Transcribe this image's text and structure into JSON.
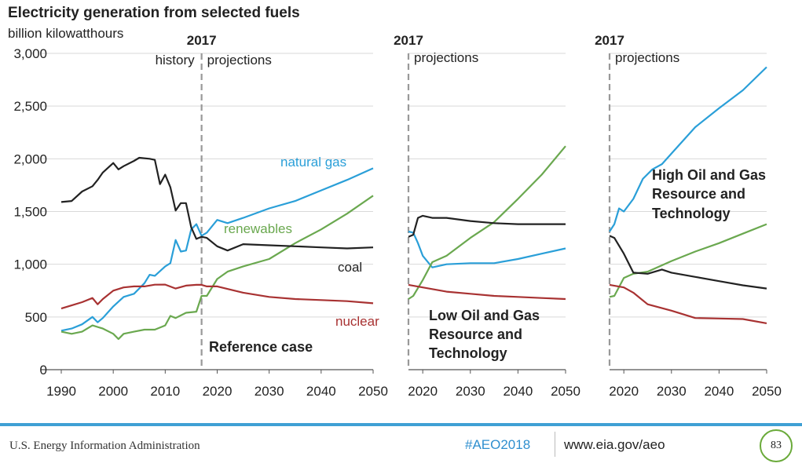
{
  "title": "Electricity generation from selected fuels",
  "unit": "billion kilowatthours",
  "colors": {
    "natural_gas": "#2a9fd8",
    "renewables": "#6aa84f",
    "coal": "#222222",
    "nuclear": "#a83232",
    "footer_rule": "#3fa0d4"
  },
  "chart_data": [
    {
      "type": "line",
      "xlim": [
        1990,
        2050
      ],
      "ylim": [
        0,
        3000
      ],
      "x_ticks": [
        "1990",
        "2000",
        "2010",
        "2020",
        "2030",
        "2040",
        "2050"
      ],
      "y_ticks": [
        "0",
        "500",
        "1,000",
        "1,500",
        "2,000",
        "2,500",
        "3,000"
      ],
      "marker_year": "2017",
      "marker_left_label": "history",
      "marker_right_label": "projections",
      "case_label": "Reference case",
      "series": [
        {
          "name": "natural gas",
          "color": "#2a9fd8",
          "points": [
            [
              1990,
              370
            ],
            [
              1992,
              390
            ],
            [
              1994,
              430
            ],
            [
              1996,
              500
            ],
            [
              1997,
              450
            ],
            [
              1998,
              490
            ],
            [
              2000,
              600
            ],
            [
              2002,
              690
            ],
            [
              2004,
              720
            ],
            [
              2006,
              820
            ],
            [
              2007,
              900
            ],
            [
              2008,
              890
            ],
            [
              2010,
              980
            ],
            [
              2011,
              1010
            ],
            [
              2012,
              1230
            ],
            [
              2013,
              1120
            ],
            [
              2014,
              1130
            ],
            [
              2015,
              1330
            ],
            [
              2016,
              1380
            ],
            [
              2017,
              1270
            ],
            [
              2018,
              1300
            ],
            [
              2020,
              1420
            ],
            [
              2022,
              1390
            ],
            [
              2025,
              1440
            ],
            [
              2030,
              1530
            ],
            [
              2035,
              1600
            ],
            [
              2040,
              1700
            ],
            [
              2045,
              1800
            ],
            [
              2050,
              1910
            ]
          ]
        },
        {
          "name": "renewables",
          "color": "#6aa84f",
          "points": [
            [
              1990,
              360
            ],
            [
              1992,
              340
            ],
            [
              1994,
              360
            ],
            [
              1996,
              420
            ],
            [
              1998,
              390
            ],
            [
              2000,
              340
            ],
            [
              2001,
              290
            ],
            [
              2002,
              340
            ],
            [
              2004,
              360
            ],
            [
              2006,
              380
            ],
            [
              2008,
              380
            ],
            [
              2010,
              420
            ],
            [
              2011,
              510
            ],
            [
              2012,
              490
            ],
            [
              2014,
              540
            ],
            [
              2016,
              550
            ],
            [
              2017,
              700
            ],
            [
              2018,
              700
            ],
            [
              2020,
              860
            ],
            [
              2022,
              930
            ],
            [
              2025,
              980
            ],
            [
              2030,
              1050
            ],
            [
              2035,
              1200
            ],
            [
              2040,
              1330
            ],
            [
              2045,
              1480
            ],
            [
              2050,
              1650
            ]
          ]
        },
        {
          "name": "coal",
          "color": "#222222",
          "points": [
            [
              1990,
              1590
            ],
            [
              1992,
              1600
            ],
            [
              1994,
              1690
            ],
            [
              1996,
              1740
            ],
            [
              1997,
              1800
            ],
            [
              1998,
              1870
            ],
            [
              2000,
              1960
            ],
            [
              2001,
              1900
            ],
            [
              2002,
              1930
            ],
            [
              2004,
              1980
            ],
            [
              2005,
              2010
            ],
            [
              2007,
              2000
            ],
            [
              2008,
              1990
            ],
            [
              2009,
              1760
            ],
            [
              2010,
              1850
            ],
            [
              2011,
              1730
            ],
            [
              2012,
              1510
            ],
            [
              2013,
              1580
            ],
            [
              2014,
              1580
            ],
            [
              2015,
              1350
            ],
            [
              2016,
              1240
            ],
            [
              2017,
              1260
            ],
            [
              2018,
              1250
            ],
            [
              2020,
              1170
            ],
            [
              2022,
              1130
            ],
            [
              2025,
              1190
            ],
            [
              2030,
              1180
            ],
            [
              2035,
              1170
            ],
            [
              2040,
              1160
            ],
            [
              2045,
              1150
            ],
            [
              2050,
              1160
            ]
          ]
        },
        {
          "name": "nuclear",
          "color": "#a83232",
          "points": [
            [
              1990,
              580
            ],
            [
              1992,
              610
            ],
            [
              1994,
              640
            ],
            [
              1996,
              680
            ],
            [
              1997,
              620
            ],
            [
              1998,
              670
            ],
            [
              2000,
              750
            ],
            [
              2002,
              780
            ],
            [
              2004,
              790
            ],
            [
              2006,
              790
            ],
            [
              2008,
              806
            ],
            [
              2010,
              807
            ],
            [
              2012,
              770
            ],
            [
              2014,
              797
            ],
            [
              2016,
              805
            ],
            [
              2017,
              805
            ],
            [
              2018,
              790
            ],
            [
              2020,
              790
            ],
            [
              2025,
              730
            ],
            [
              2030,
              690
            ],
            [
              2035,
              670
            ],
            [
              2040,
              660
            ],
            [
              2045,
              650
            ],
            [
              2050,
              630
            ]
          ]
        }
      ]
    },
    {
      "type": "line",
      "xlim": [
        2017,
        2050
      ],
      "ylim": [
        0,
        3000
      ],
      "x_ticks": [
        "2020",
        "2030",
        "2040",
        "2050"
      ],
      "marker_year": "2017",
      "marker_right_label": "projections",
      "case_label": "Low Oil and Gas Resource and Technology",
      "series": [
        {
          "color": "#2a9fd8",
          "points": [
            [
              2017,
              1310
            ],
            [
              2018,
              1300
            ],
            [
              2019,
              1200
            ],
            [
              2020,
              1080
            ],
            [
              2022,
              970
            ],
            [
              2025,
              1000
            ],
            [
              2030,
              1010
            ],
            [
              2035,
              1010
            ],
            [
              2040,
              1050
            ],
            [
              2045,
              1100
            ],
            [
              2050,
              1150
            ]
          ]
        },
        {
          "color": "#6aa84f",
          "points": [
            [
              2017,
              670
            ],
            [
              2018,
              700
            ],
            [
              2020,
              850
            ],
            [
              2022,
              1020
            ],
            [
              2025,
              1080
            ],
            [
              2030,
              1250
            ],
            [
              2035,
              1400
            ],
            [
              2040,
              1620
            ],
            [
              2045,
              1850
            ],
            [
              2050,
              2120
            ]
          ]
        },
        {
          "color": "#222222",
          "points": [
            [
              2017,
              1260
            ],
            [
              2018,
              1280
            ],
            [
              2019,
              1440
            ],
            [
              2020,
              1460
            ],
            [
              2022,
              1440
            ],
            [
              2025,
              1440
            ],
            [
              2030,
              1410
            ],
            [
              2035,
              1390
            ],
            [
              2040,
              1380
            ],
            [
              2045,
              1380
            ],
            [
              2050,
              1380
            ]
          ]
        },
        {
          "color": "#a83232",
          "points": [
            [
              2017,
              805
            ],
            [
              2020,
              780
            ],
            [
              2025,
              740
            ],
            [
              2030,
              720
            ],
            [
              2035,
              700
            ],
            [
              2040,
              690
            ],
            [
              2045,
              680
            ],
            [
              2050,
              670
            ]
          ]
        }
      ]
    },
    {
      "type": "line",
      "xlim": [
        2017,
        2050
      ],
      "ylim": [
        0,
        3000
      ],
      "x_ticks": [
        "2020",
        "2030",
        "2040",
        "2050"
      ],
      "marker_year": "2017",
      "marker_right_label": "projections",
      "case_label": "High Oil and Gas Resource and Technology",
      "series": [
        {
          "color": "#2a9fd8",
          "points": [
            [
              2017,
              1310
            ],
            [
              2018,
              1380
            ],
            [
              2019,
              1530
            ],
            [
              2020,
              1500
            ],
            [
              2022,
              1620
            ],
            [
              2024,
              1810
            ],
            [
              2026,
              1900
            ],
            [
              2028,
              1950
            ],
            [
              2030,
              2050
            ],
            [
              2035,
              2300
            ],
            [
              2040,
              2480
            ],
            [
              2045,
              2650
            ],
            [
              2050,
              2870
            ]
          ]
        },
        {
          "color": "#6aa84f",
          "points": [
            [
              2017,
              690
            ],
            [
              2018,
              700
            ],
            [
              2020,
              870
            ],
            [
              2022,
              910
            ],
            [
              2025,
              930
            ],
            [
              2030,
              1030
            ],
            [
              2035,
              1120
            ],
            [
              2040,
              1200
            ],
            [
              2045,
              1290
            ],
            [
              2050,
              1380
            ]
          ]
        },
        {
          "color": "#222222",
          "points": [
            [
              2017,
              1270
            ],
            [
              2018,
              1250
            ],
            [
              2020,
              1100
            ],
            [
              2022,
              920
            ],
            [
              2025,
              910
            ],
            [
              2028,
              950
            ],
            [
              2030,
              920
            ],
            [
              2035,
              880
            ],
            [
              2040,
              840
            ],
            [
              2045,
              800
            ],
            [
              2050,
              770
            ]
          ]
        },
        {
          "color": "#a83232",
          "points": [
            [
              2017,
              805
            ],
            [
              2020,
              780
            ],
            [
              2022,
              730
            ],
            [
              2025,
              620
            ],
            [
              2030,
              560
            ],
            [
              2035,
              490
            ],
            [
              2040,
              485
            ],
            [
              2045,
              480
            ],
            [
              2050,
              440
            ]
          ]
        }
      ]
    }
  ],
  "series_labels": {
    "natural_gas": "natural gas",
    "renewables": "renewables",
    "coal": "coal",
    "nuclear": "nuclear"
  },
  "case_labels": {
    "reference": "Reference case",
    "low": [
      "Low Oil and Gas",
      "Resource and",
      "Technology"
    ],
    "high": [
      "High Oil and Gas",
      "Resource and",
      "Technology"
    ]
  },
  "footer": {
    "agency": "U.S. Energy Information Administration",
    "hashtag": "#AEO2018",
    "website": "www.eia.gov/aeo",
    "page": "83"
  }
}
